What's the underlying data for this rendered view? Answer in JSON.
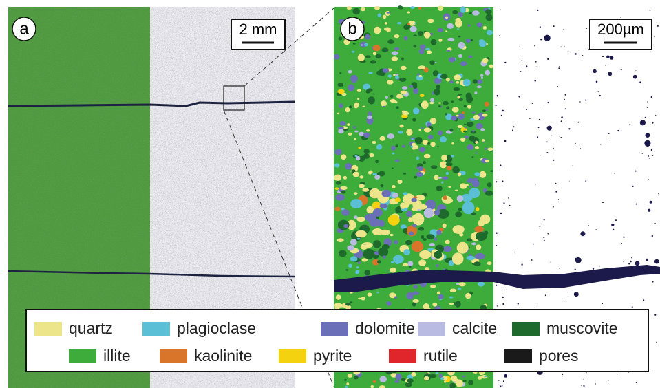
{
  "panels": [
    {
      "label": "a",
      "scale": "2 mm"
    },
    {
      "label": "b",
      "scale": "200µm"
    }
  ],
  "legend": [
    {
      "name": "quartz",
      "color": "#ece58a"
    },
    {
      "name": "plagioclase",
      "color": "#5bbfd6"
    },
    {
      "name": "dolomite",
      "color": "#6b6fb8"
    },
    {
      "name": "calcite",
      "color": "#b9bbe2"
    },
    {
      "name": "muscovite",
      "color": "#1d6a2c"
    },
    {
      "name": "illite",
      "color": "#3eac3a"
    },
    {
      "name": "kaolinite",
      "color": "#d9752a"
    },
    {
      "name": "pyrite",
      "color": "#f4d20f"
    },
    {
      "name": "rutile",
      "color": "#e0262b"
    },
    {
      "name": "pores",
      "color": "#1a1a1a"
    }
  ]
}
